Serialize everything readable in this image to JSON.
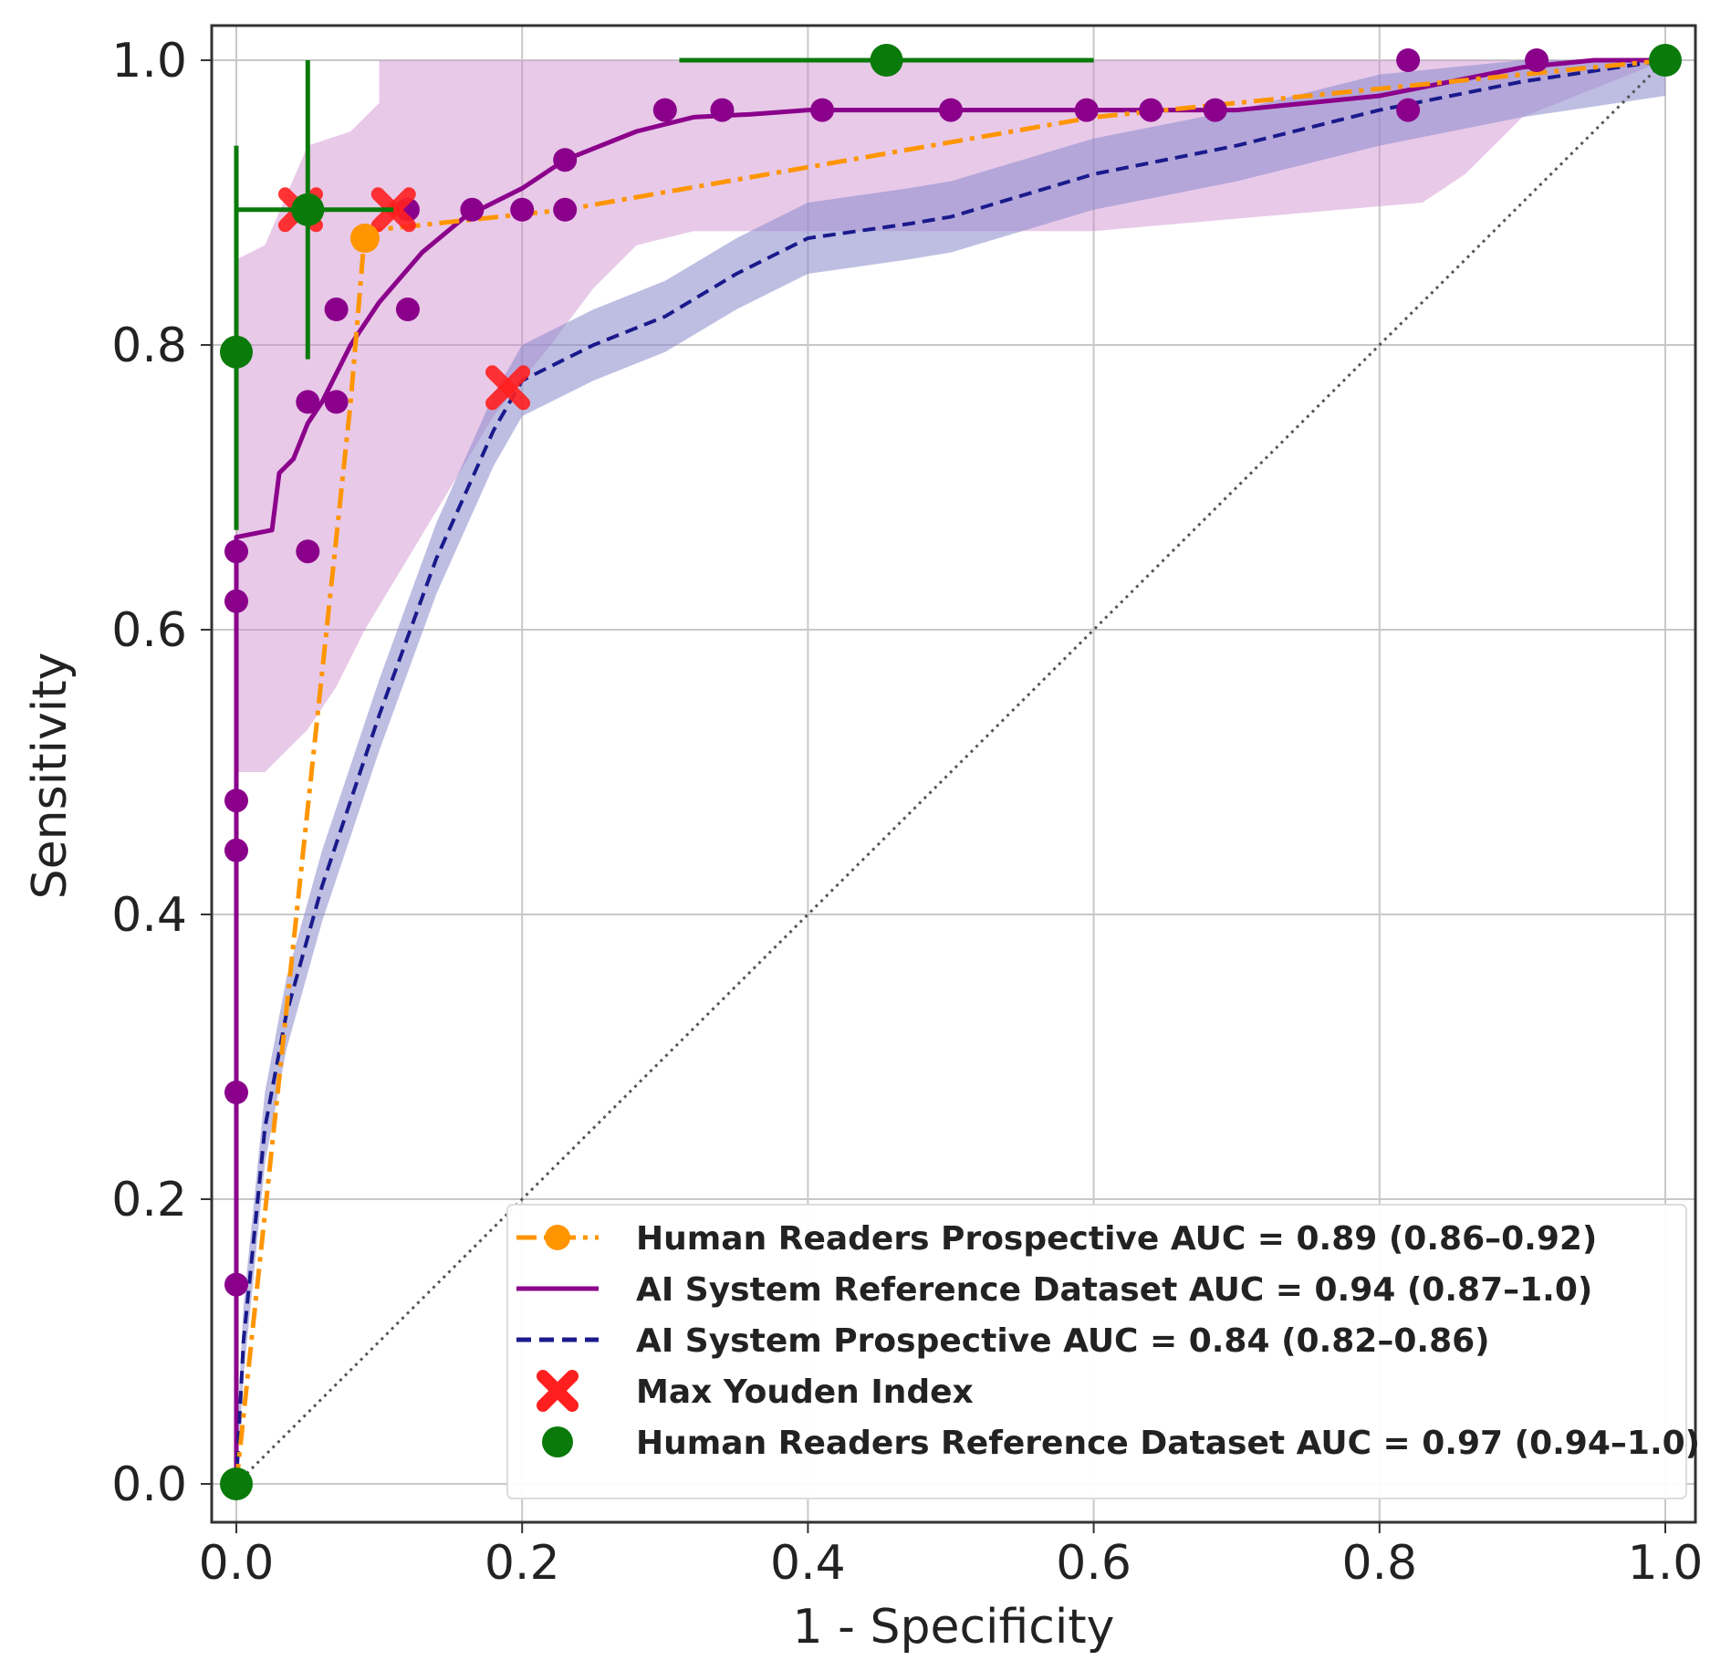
{
  "chart_data": {
    "type": "line",
    "title": "",
    "xlabel": "1 - Specificity",
    "ylabel": "Sensitivity",
    "xlim": [
      0,
      1
    ],
    "ylim": [
      0,
      1
    ],
    "grid": true,
    "x_ticks": [
      "0.0",
      "0.2",
      "0.4",
      "0.6",
      "0.8",
      "1.0"
    ],
    "y_ticks": [
      "0.0",
      "0.2",
      "0.4",
      "0.6",
      "0.8",
      "1.0"
    ],
    "legend_position": "bottom-right",
    "colors": {
      "human_prospective": "#ff9500",
      "ai_reference": "#8b008b",
      "ai_reference_band": "#cc88cc",
      "ai_prospective": "#1a1a8c",
      "ai_prospective_band": "#8888cc",
      "youden": "#ff1f1f",
      "human_reference": "#0a7a0a",
      "diagonal": "#555555",
      "grid": "#c8c8c8"
    },
    "series": [
      {
        "name": "Human Readers Prospective AUC = 0.89 (0.86–0.92)",
        "style": "dash-dot",
        "marker": "circle",
        "x": [
          0.0,
          0.08,
          0.09,
          0.23,
          0.6,
          1.0
        ],
        "y": [
          0.0,
          0.76,
          0.88,
          0.895,
          0.96,
          1.0
        ],
        "markers_x": [
          0.0,
          0.09,
          1.0
        ],
        "markers_y": [
          0.0,
          0.875,
          1.0
        ]
      },
      {
        "name": "AI System Reference Dataset AUC = 0.94 (0.87–1.0)",
        "style": "solid",
        "marker": "circle",
        "x": [
          0.0,
          0.0,
          0.0,
          0.0,
          0.0,
          0.0,
          0.025,
          0.03,
          0.04,
          0.05,
          0.06,
          0.08,
          0.1,
          0.13,
          0.16,
          0.2,
          0.23,
          0.28,
          0.32,
          0.36,
          0.4,
          0.5,
          0.6,
          0.7,
          0.8,
          0.9,
          0.95,
          1.0
        ],
        "y": [
          0.0,
          0.14,
          0.28,
          0.45,
          0.6,
          0.665,
          0.67,
          0.71,
          0.72,
          0.745,
          0.76,
          0.8,
          0.83,
          0.865,
          0.89,
          0.91,
          0.93,
          0.95,
          0.96,
          0.962,
          0.965,
          0.965,
          0.965,
          0.965,
          0.975,
          0.995,
          1.0,
          1.0
        ],
        "band_upper": [
          [
            0.0,
            0.86
          ],
          [
            0.02,
            0.87
          ],
          [
            0.05,
            0.94
          ],
          [
            0.08,
            0.95
          ],
          [
            0.1,
            0.97
          ],
          [
            0.1,
            1.0
          ],
          [
            0.3,
            1.0
          ],
          [
            1.0,
            1.0
          ]
        ],
        "band_lower": [
          [
            0.0,
            0.5
          ],
          [
            0.02,
            0.5
          ],
          [
            0.05,
            0.53
          ],
          [
            0.07,
            0.56
          ],
          [
            0.09,
            0.6
          ],
          [
            0.12,
            0.65
          ],
          [
            0.15,
            0.7
          ],
          [
            0.18,
            0.75
          ],
          [
            0.22,
            0.8
          ],
          [
            0.25,
            0.84
          ],
          [
            0.28,
            0.87
          ],
          [
            0.32,
            0.88
          ],
          [
            0.45,
            0.88
          ],
          [
            0.6,
            0.88
          ],
          [
            0.83,
            0.9
          ],
          [
            0.86,
            0.92
          ],
          [
            0.9,
            0.96
          ],
          [
            1.0,
            1.0
          ]
        ],
        "markers_x": [
          0.0,
          0.0,
          0.0,
          0.0,
          0.0,
          0.0,
          0.0,
          0.05,
          0.05,
          0.07,
          0.07,
          0.12,
          0.12,
          0.165,
          0.2,
          0.23,
          0.23,
          0.3,
          0.34,
          0.41,
          0.5,
          0.595,
          0.64,
          0.685,
          0.82,
          0.82,
          0.91,
          1.0
        ],
        "markers_y": [
          0.0,
          0.14,
          0.275,
          0.445,
          0.48,
          0.62,
          0.655,
          0.655,
          0.76,
          0.76,
          0.825,
          0.825,
          0.895,
          0.895,
          0.895,
          0.895,
          0.93,
          0.965,
          0.965,
          0.965,
          0.965,
          0.965,
          0.965,
          0.965,
          0.965,
          1.0,
          1.0,
          1.0
        ]
      },
      {
        "name": "AI System Prospective AUC = 0.84 (0.82–0.86)",
        "style": "dashed",
        "marker": "none",
        "x": [
          0.0,
          0.005,
          0.01,
          0.02,
          0.035,
          0.06,
          0.1,
          0.14,
          0.18,
          0.2,
          0.25,
          0.3,
          0.35,
          0.4,
          0.47,
          0.5,
          0.55,
          0.6,
          0.7,
          0.8,
          0.9,
          1.0
        ],
        "y": [
          0.0,
          0.1,
          0.15,
          0.25,
          0.33,
          0.42,
          0.54,
          0.65,
          0.74,
          0.775,
          0.8,
          0.82,
          0.85,
          0.875,
          0.885,
          0.89,
          0.905,
          0.92,
          0.94,
          0.965,
          0.985,
          1.0
        ],
        "band_half_width": 0.025
      },
      {
        "name": "Max Youden Index",
        "style": "none",
        "marker": "x",
        "x": [
          0.045,
          0.11,
          0.19
        ],
        "y": [
          0.895,
          0.895,
          0.77
        ]
      },
      {
        "name": "Human Readers Reference Dataset AUC = 0.97 (0.94–1.0)",
        "style": "none",
        "marker": "circle",
        "x": [
          0.0,
          0.0,
          0.05,
          0.455,
          1.0
        ],
        "y": [
          0.0,
          0.795,
          0.895,
          1.0,
          1.0
        ],
        "error_bars": [
          {
            "x": 0.0,
            "y": 0.795,
            "y_range": [
              0.67,
              0.94
            ]
          },
          {
            "x": 0.05,
            "y": 0.895,
            "x_range": [
              0.0,
              0.11
            ],
            "y_range": [
              0.79,
              1.0
            ]
          },
          {
            "x": 0.455,
            "y": 1.0,
            "x_range": [
              0.31,
              0.6
            ]
          }
        ]
      }
    ],
    "reference_line": {
      "x": [
        0,
        1
      ],
      "y": [
        0,
        1
      ],
      "style": "dotted"
    }
  }
}
